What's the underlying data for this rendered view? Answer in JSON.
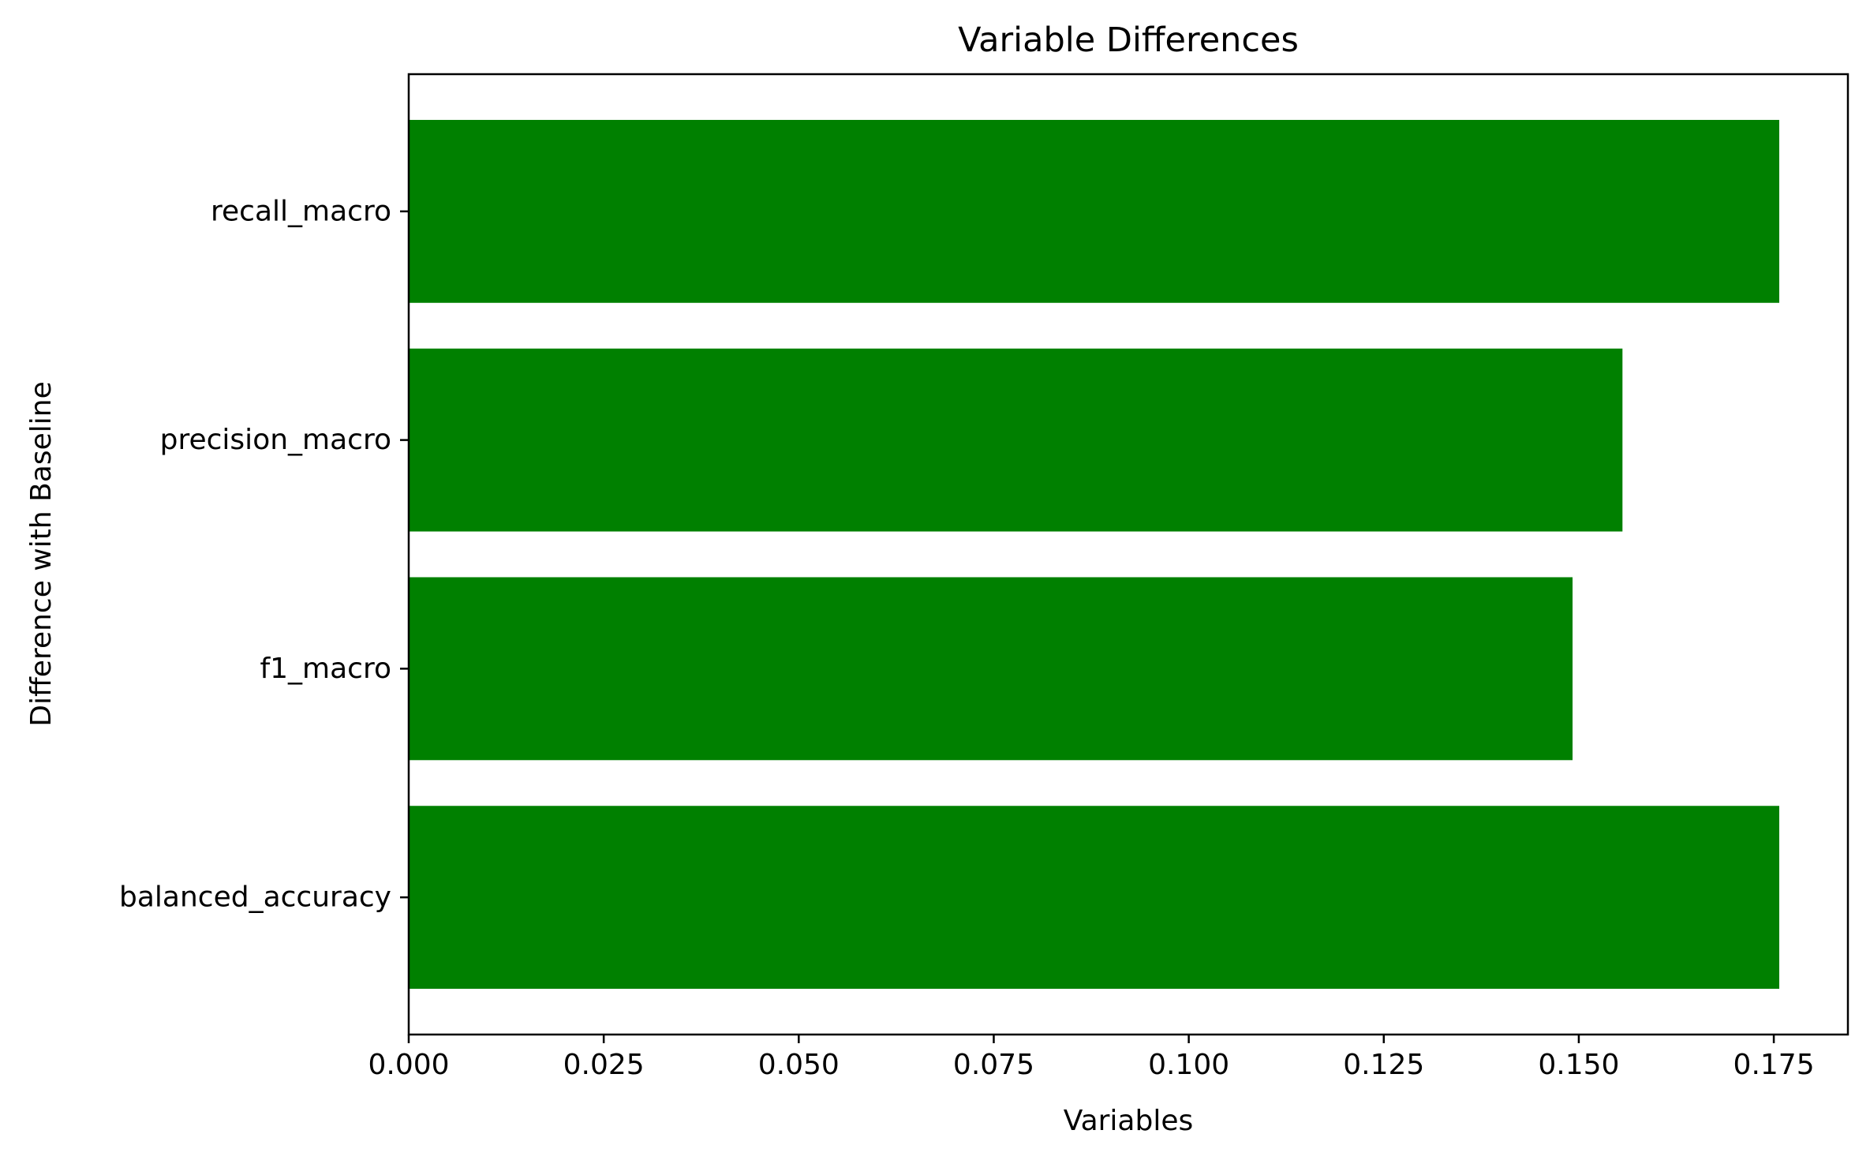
{
  "chart_data": {
    "type": "bar",
    "orientation": "horizontal",
    "title": "Variable Differences",
    "xlabel": "Variables",
    "ylabel": "Difference with Baseline",
    "categories": [
      "balanced_accuracy",
      "f1_macro",
      "precision_macro",
      "recall_macro"
    ],
    "values": [
      0.1757,
      0.1492,
      0.1556,
      0.1757
    ],
    "xlim": [
      0,
      0.1845
    ],
    "xticks": [
      "0.000",
      "0.025",
      "0.050",
      "0.075",
      "0.100",
      "0.125",
      "0.150",
      "0.175"
    ],
    "bar_color": "#008000",
    "grid": false,
    "legend": "none"
  }
}
